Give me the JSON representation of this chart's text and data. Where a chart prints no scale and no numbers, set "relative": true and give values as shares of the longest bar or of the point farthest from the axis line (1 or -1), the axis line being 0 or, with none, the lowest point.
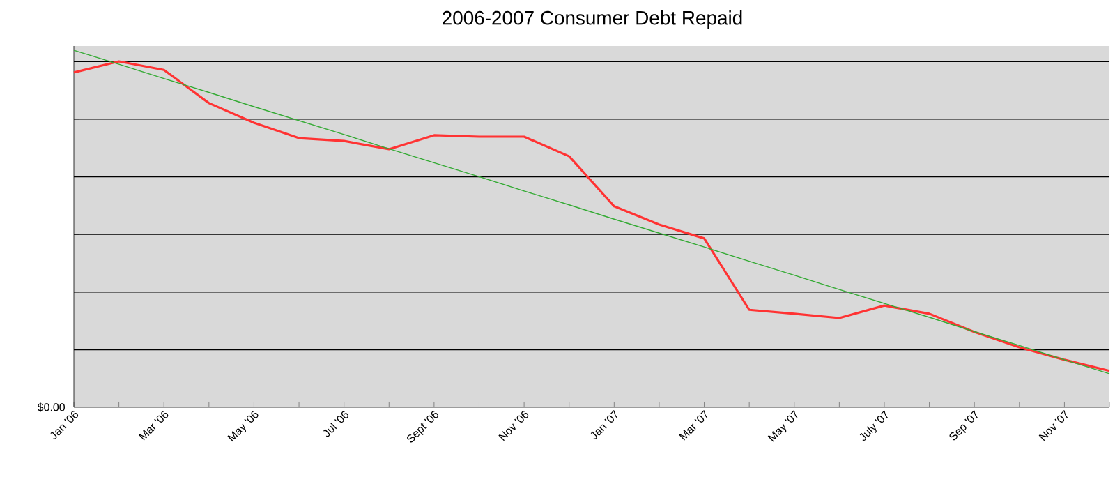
{
  "chart_data": {
    "type": "line",
    "title": "2006-2007 Consumer Debt Repaid",
    "relative": true,
    "categories": [
      "Jan '06",
      null,
      "Mar '06",
      null,
      "May '06",
      null,
      "Jul '06",
      null,
      "Sept '06",
      null,
      "Nov '06",
      null,
      "Jan '07",
      null,
      "Mar '07",
      null,
      "May '07",
      null,
      "July '07",
      null,
      "Sep '07",
      null,
      "Nov '07",
      null
    ],
    "annotations": [
      "$0.00"
    ],
    "grid": "y",
    "marker": "none",
    "series": [
      {
        "color": "#ff3333",
        "values": [
          0.938,
          0.969,
          0.945,
          0.852,
          0.797,
          0.754,
          0.746,
          0.723,
          0.762,
          0.758,
          0.758,
          0.703,
          0.563,
          0.512,
          0.473,
          0.273,
          0.262,
          0.25,
          0.285,
          0.262,
          0.211,
          0.168,
          0.133,
          0.102
        ]
      },
      {
        "color": "#33aa33",
        "values": [
          1.0,
          0.961,
          0.921,
          0.882,
          0.842,
          0.803,
          0.764,
          0.724,
          0.685,
          0.646,
          0.606,
          0.567,
          0.527,
          0.488,
          0.449,
          0.409,
          0.37,
          0.33,
          0.291,
          0.252,
          0.212,
          0.173,
          0.133,
          0.094
        ]
      }
    ]
  }
}
